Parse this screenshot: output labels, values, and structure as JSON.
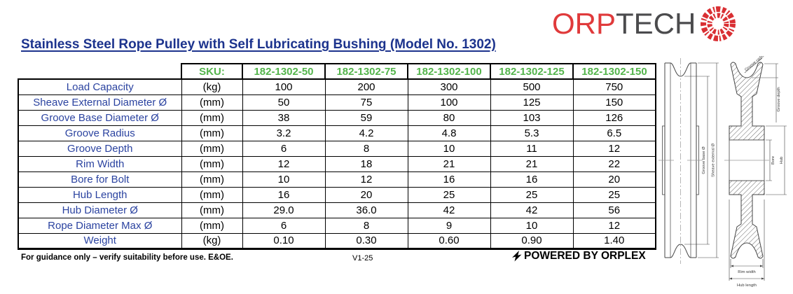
{
  "logo": {
    "part1": "ORP",
    "part2": "TECH",
    "red": "#e03a3b",
    "gray": "#4b4b4d"
  },
  "title": "Stainless Steel Rope Pulley with Self Lubricating Bushing (Model No. 1302)",
  "table": {
    "sku_label": "SKU:",
    "skus": [
      "182-1302-50",
      "182-1302-75",
      "182-1302-100",
      "182-1302-125",
      "182-1302-150"
    ],
    "rows": [
      {
        "label": "Load Capacity",
        "unit": "(kg)",
        "values": [
          "100",
          "200",
          "300",
          "500",
          "750"
        ]
      },
      {
        "label": "Sheave External Diameter Ø",
        "unit": "(mm)",
        "values": [
          "50",
          "75",
          "100",
          "125",
          "150"
        ]
      },
      {
        "label": "Groove Base Diameter Ø",
        "unit": "(mm)",
        "values": [
          "38",
          "59",
          "80",
          "103",
          "126"
        ]
      },
      {
        "label": "Groove Radius",
        "unit": "(mm)",
        "values": [
          "3.2",
          "4.2",
          "4.8",
          "5.3",
          "6.5"
        ]
      },
      {
        "label": "Groove Depth",
        "unit": "(mm)",
        "values": [
          "6",
          "8",
          "10",
          "11",
          "12"
        ]
      },
      {
        "label": "Rim Width",
        "unit": "(mm)",
        "values": [
          "12",
          "18",
          "21",
          "21",
          "22"
        ]
      },
      {
        "label": "Bore for Bolt",
        "unit": "(mm)",
        "values": [
          "10",
          "12",
          "16",
          "16",
          "20"
        ]
      },
      {
        "label": "Hub Length",
        "unit": "(mm)",
        "values": [
          "16",
          "20",
          "25",
          "25",
          "25"
        ]
      },
      {
        "label": "Hub Diameter Ø",
        "unit": "(mm)",
        "values": [
          "29.0",
          "36.0",
          "42",
          "42",
          "56"
        ]
      },
      {
        "label": "Rope Diameter Max Ø",
        "unit": "(mm)",
        "values": [
          "6",
          "8",
          "9",
          "10",
          "12"
        ]
      },
      {
        "label": "Weight",
        "unit": "(kg)",
        "values": [
          "0.10",
          "0.30",
          "0.60",
          "0.90",
          "1.40"
        ]
      }
    ],
    "colors": {
      "sku_green": "#53b44b",
      "label_blue": "#2b43a0"
    }
  },
  "footer": {
    "disclaimer": "For guidance only – verify suitability before use. E&OE.",
    "version": "V1-25",
    "powered_by": "POWERED BY ORPLEX"
  },
  "drawing": {
    "labels": {
      "groove_radius": "Groove radius",
      "groove_depth": "Groove depth",
      "groove_base": "Groove base Ø",
      "sheave_external": "Sheave external Ø",
      "bore": "Bore",
      "hub": "Hub",
      "rim_width": "Rim width",
      "hub_length": "Hub length"
    }
  }
}
